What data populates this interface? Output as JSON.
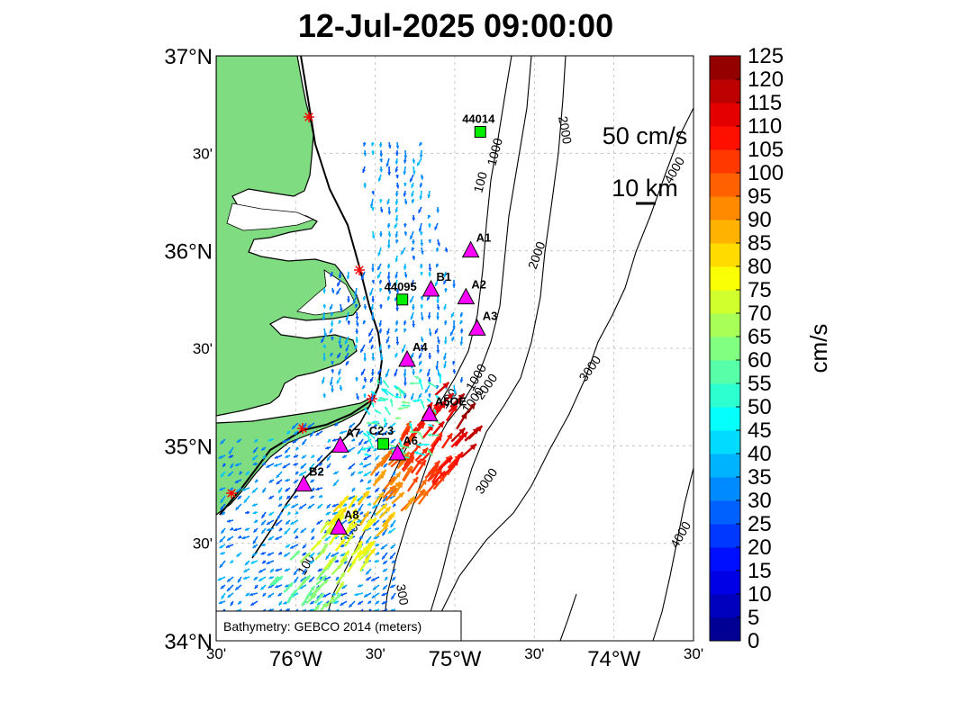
{
  "title": "12-Jul-2025 09:00:00",
  "colors": {
    "land": "#7fdc80",
    "coast": "#000000",
    "station": "#ff00ff",
    "buoy": "#00ee00",
    "shore_marker": "#ff0000"
  },
  "map": {
    "lon_range": [
      -76.5,
      -73.5
    ],
    "lat_range": [
      34.0,
      37.0
    ],
    "lat_ticks": [
      {
        "value": 37.0,
        "label": "37°N"
      },
      {
        "value": 36.5,
        "label": "30'"
      },
      {
        "value": 36.0,
        "label": "36°N"
      },
      {
        "value": 35.5,
        "label": "30'"
      },
      {
        "value": 35.0,
        "label": "35°N"
      },
      {
        "value": 34.5,
        "label": "30'"
      },
      {
        "value": 34.0,
        "label": "34°N"
      }
    ],
    "lon_ticks": [
      {
        "value": -76.5,
        "label": "30'"
      },
      {
        "value": -76.0,
        "label": "76°W"
      },
      {
        "value": -75.5,
        "label": "30'"
      },
      {
        "value": -75.0,
        "label": "75°W"
      },
      {
        "value": -74.5,
        "label": "30'"
      },
      {
        "value": -74.0,
        "label": "74°W"
      },
      {
        "value": -73.5,
        "label": "30'"
      }
    ],
    "grid": true,
    "bathymetry_note": "Bathymetry: GEBCO 2014 (meters)",
    "contour_labels": [
      "2000",
      "1000",
      "100",
      "2000",
      "1000",
      "3000",
      "100",
      "1000",
      "2000",
      "3000",
      "4000",
      "3000",
      "4000",
      "100",
      "300"
    ],
    "scale_vector_label": "50 cm/s",
    "scale_distance_label": "10 km",
    "stations": [
      {
        "name": "A1",
        "lon": -74.9,
        "lat": 36.0
      },
      {
        "name": "B1",
        "lon": -75.15,
        "lat": 35.8
      },
      {
        "name": "A2",
        "lon": -74.93,
        "lat": 35.76
      },
      {
        "name": "A3",
        "lon": -74.86,
        "lat": 35.6
      },
      {
        "name": "A4",
        "lon": -75.3,
        "lat": 35.44
      },
      {
        "name": "A5OE",
        "lon": -75.16,
        "lat": 35.16
      },
      {
        "name": "A7",
        "lon": -75.72,
        "lat": 35.0
      },
      {
        "name": "A6",
        "lon": -75.36,
        "lat": 34.96
      },
      {
        "name": "B2",
        "lon": -75.95,
        "lat": 34.8
      },
      {
        "name": "A8",
        "lon": -75.73,
        "lat": 34.58
      }
    ],
    "buoys": [
      {
        "name": "44014",
        "lon": -74.84,
        "lat": 36.61
      },
      {
        "name": "44095",
        "lon": -75.33,
        "lat": 35.75
      },
      {
        "name": "C2.3",
        "lon": -75.45,
        "lat": 35.01
      }
    ]
  },
  "colorbar": {
    "label": "cm/s",
    "min": 0,
    "max": 125,
    "ticks": [
      "0",
      "5",
      "10",
      "15",
      "20",
      "25",
      "30",
      "35",
      "40",
      "45",
      "50",
      "55",
      "60",
      "65",
      "70",
      "75",
      "80",
      "85",
      "90",
      "95",
      "100",
      "105",
      "110",
      "115",
      "120",
      "125"
    ]
  }
}
